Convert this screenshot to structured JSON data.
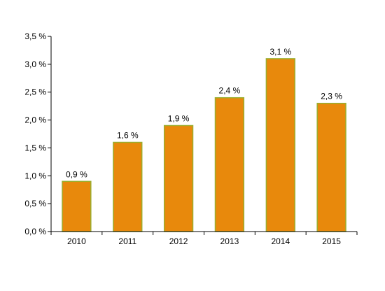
{
  "chart_data": {
    "type": "bar",
    "categories": [
      "2010",
      "2011",
      "2012",
      "2013",
      "2014",
      "2015"
    ],
    "values": [
      0.9,
      1.6,
      1.9,
      2.4,
      3.1,
      2.3
    ],
    "data_labels": [
      "0,9 %",
      "1,6 %",
      "1,9 %",
      "2,4 %",
      "3,1 %",
      "2,3 %"
    ],
    "y_ticks": [
      0,
      0.5,
      1.0,
      1.5,
      2.0,
      2.5,
      3.0,
      3.5
    ],
    "y_tick_labels": [
      "0,0 %",
      "0,5 %",
      "1,0 %",
      "1,5 %",
      "2,0 %",
      "2,5 %",
      "3,0 %",
      "3,5 %"
    ],
    "ylim": [
      0,
      3.5
    ],
    "grid": false,
    "title": "",
    "xlabel": "",
    "ylabel": ""
  },
  "colors": {
    "bar_fill": "#E8890C",
    "bar_edge": "#9AAE2E",
    "axis": "#000000"
  }
}
